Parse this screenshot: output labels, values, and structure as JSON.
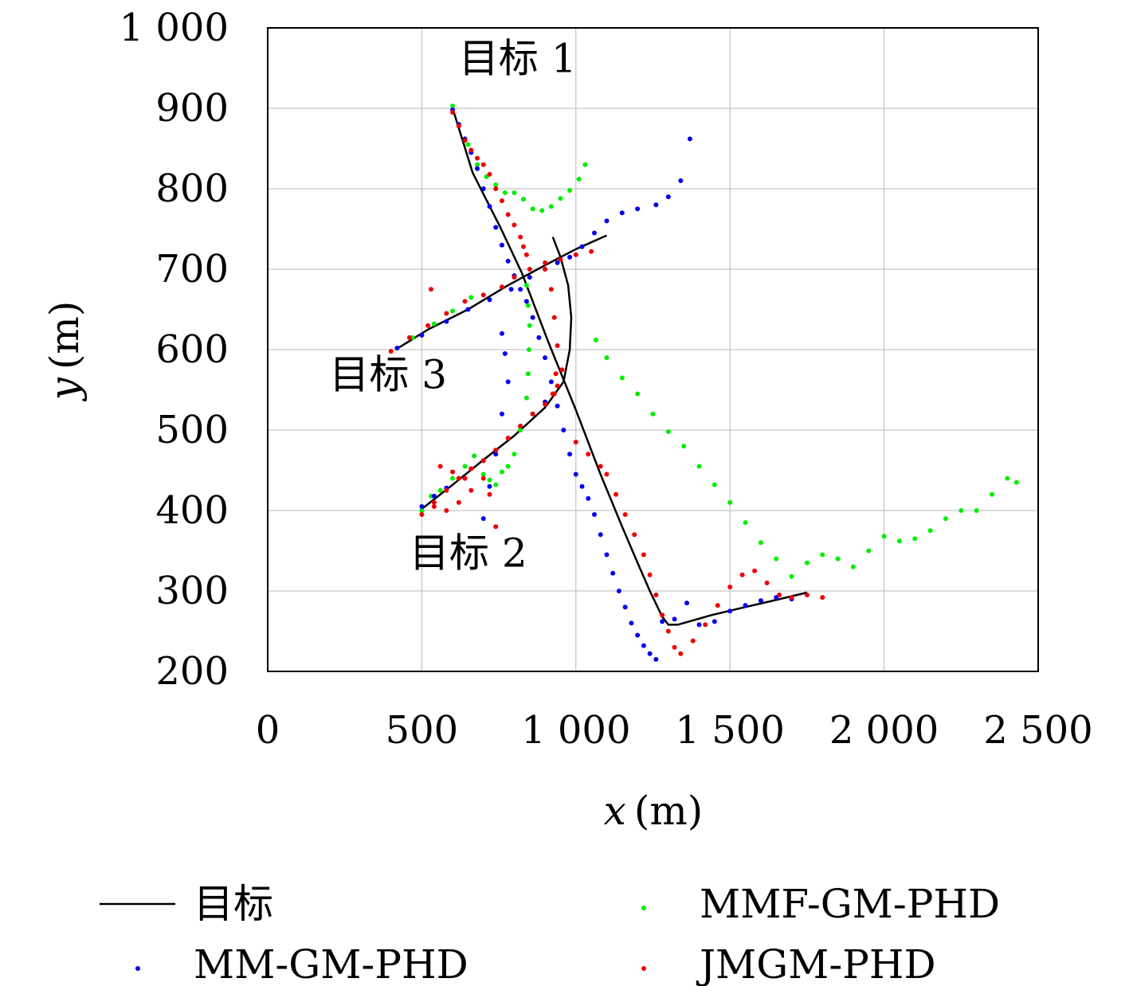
{
  "chart_data": {
    "type": "scatter",
    "xlabel_var": "x",
    "xlabel_unit": "(m)",
    "ylabel_var": "y",
    "ylabel_unit": "(m)",
    "xlim": [
      0,
      2500
    ],
    "ylim": [
      200,
      1000
    ],
    "x_ticks": [
      {
        "value": 0,
        "label": "0"
      },
      {
        "value": 500,
        "label": "500"
      },
      {
        "value": 1000,
        "label": "1 000"
      },
      {
        "value": 1500,
        "label": "1 500"
      },
      {
        "value": 2000,
        "label": "2 000"
      },
      {
        "value": 2500,
        "label": "2 500"
      }
    ],
    "y_ticks": [
      {
        "value": 200,
        "label": "200"
      },
      {
        "value": 300,
        "label": "300"
      },
      {
        "value": 400,
        "label": "400"
      },
      {
        "value": 500,
        "label": "500"
      },
      {
        "value": 600,
        "label": "600"
      },
      {
        "value": 700,
        "label": "700"
      },
      {
        "value": 800,
        "label": "800"
      },
      {
        "value": 900,
        "label": "900"
      },
      {
        "value": 1000,
        "label": "1 000"
      }
    ],
    "grid": true,
    "legend_position": "bottom",
    "annotations": [
      {
        "text": "目标 1",
        "x": 620,
        "y": 945
      },
      {
        "text": "目标 3",
        "x": 200,
        "y": 552
      },
      {
        "text": "目标 2",
        "x": 460,
        "y": 330
      }
    ],
    "series": [
      {
        "name": "目标",
        "style": "line",
        "color": "#000000",
        "tracks": [
          {
            "x": [
              600,
              665,
              755,
              825,
              910,
              1000,
              1080,
              1150,
              1200,
              1240,
              1280,
              1300,
              1330,
              1440,
              1550,
              1640,
              1750
            ],
            "y": [
              900,
              820,
              752,
              695,
              610,
              525,
              445,
              380,
              335,
              300,
              268,
              258,
              258,
              270,
              280,
              288,
              298
            ]
          },
          {
            "x": [
              415,
              520,
              650,
              780,
              900,
              1000,
              1100
            ],
            "y": [
              600,
              625,
              650,
              680,
              705,
              725,
              742
            ]
          },
          {
            "x": [
              500,
              600,
              700,
              800,
              900,
              960,
              980,
              985,
              975,
              950,
              925
            ],
            "y": [
              402,
              432,
              463,
              493,
              528,
              560,
              600,
              640,
              680,
              715,
              740
            ]
          }
        ]
      },
      {
        "name": "MMF-GM-PHD",
        "style": "dots",
        "color": "#00ee00",
        "tracks": [
          {
            "x": [
              600,
              620,
              650,
              680,
              710,
              740,
              770,
              800,
              830,
              860,
              890,
              920,
              950,
              980,
              1010,
              1030
            ],
            "y": [
              903,
              880,
              855,
              830,
              815,
              805,
              795,
              795,
              787,
              775,
              773,
              778,
              788,
              798,
              812,
              830
            ]
          },
          {
            "x": [
              1065,
              1100,
              1150,
              1200,
              1250,
              1300,
              1350,
              1400,
              1450,
              1500,
              1550,
              1600,
              1650,
              1700,
              1750,
              1800,
              1850,
              1900,
              1950,
              2000,
              2050,
              2100,
              2150,
              2200,
              2250,
              2300,
              2350,
              2400,
              2430
            ],
            "y": [
              612,
              590,
              565,
              545,
              520,
              498,
              480,
              455,
              432,
              410,
              385,
              360,
              340,
              318,
              335,
              345,
              340,
              330,
              350,
              368,
              362,
              365,
              375,
              390,
              400,
              400,
              420,
              440,
              435
            ]
          },
          {
            "x": [
              500,
              530,
              560,
              600,
              640,
              670,
              700,
              720,
              740,
              760,
              780,
              800,
              820,
              840,
              845,
              848,
              850,
              845,
              840
            ],
            "y": [
              400,
              418,
              425,
              440,
              455,
              468,
              445,
              438,
              432,
              448,
              455,
              470,
              500,
              540,
              570,
              600,
              630,
              655,
              680
            ]
          },
          {
            "x": [
              470,
              540,
              600,
              660
            ],
            "y": [
              615,
              632,
              648,
              665
            ]
          }
        ]
      },
      {
        "name": "MM-GM-PHD",
        "style": "dots",
        "color": "#0000ee",
        "tracks": [
          {
            "x": [
              600,
              620,
              640,
              660,
              680,
              700,
              720,
              740,
              760,
              780,
              800,
              820,
              840,
              860,
              880,
              900,
              920,
              940,
              960,
              980,
              1000,
              1020,
              1040,
              1060,
              1080,
              1100,
              1120,
              1140,
              1160,
              1180,
              1200,
              1220,
              1240,
              1260
            ],
            "y": [
              898,
              880,
              862,
              845,
              825,
              800,
              778,
              752,
              730,
              710,
              692,
              675,
              660,
              640,
              615,
              590,
              560,
              530,
              500,
              470,
              445,
              430,
              415,
              395,
              370,
              345,
              322,
              300,
              280,
              260,
              245,
              232,
              222,
              215
            ]
          },
          {
            "x": [
              1280,
              1320,
              1360,
              1400,
              1450,
              1500,
              1550,
              1600,
              1650,
              1700
            ],
            "y": [
              262,
              265,
              285,
              258,
              262,
              275,
              282,
              288,
              292,
              290
            ]
          },
          {
            "x": [
              420,
              500,
              580,
              650,
              720,
              790,
              850,
              900,
              940,
              980,
              1020,
              1060,
              1100,
              1150,
              1200,
              1260,
              1300,
              1340,
              1370
            ],
            "y": [
              602,
              618,
              635,
              650,
              662,
              675,
              690,
              700,
              708,
              715,
              728,
              745,
              760,
              770,
              775,
              780,
              790,
              810,
              862
            ]
          },
          {
            "x": [
              500,
              540,
              580,
              620,
              660,
              700,
              740,
              780,
              820,
              860,
              900
            ],
            "y": [
              405,
              418,
              428,
              440,
              452,
              462,
              475,
              490,
              505,
              520,
              535
            ]
          },
          {
            "x": [
              760,
              770,
              780,
              760,
              740,
              720,
              700
            ],
            "y": [
              620,
              595,
              560,
              520,
              470,
              430,
              390
            ]
          }
        ]
      },
      {
        "name": "JMGM-PHD",
        "style": "dots",
        "color": "#ee0000",
        "tracks": [
          {
            "x": [
              600,
              620,
              640,
              660,
              680,
              700,
              720,
              740,
              760,
              780,
              800,
              820,
              830,
              840
            ],
            "y": [
              895,
              878,
              860,
              848,
              838,
              830,
              818,
              800,
              785,
              768,
              755,
              740,
              728,
              718
            ]
          },
          {
            "x": [
              400,
              460,
              520,
              580,
              640,
              700,
              760,
              800,
              850,
              900,
              950,
              1000,
              1050
            ],
            "y": [
              598,
              615,
              630,
              645,
              660,
              668,
              678,
              690,
              700,
              708,
              712,
              718,
              722
            ]
          },
          {
            "x": [
              900,
              920,
              930,
              940,
              935,
              925,
              940,
              955
            ],
            "y": [
              700,
              675,
              640,
              605,
              570,
              545,
              555,
              575
            ]
          },
          {
            "x": [
              500,
              540,
              580,
              620,
              660,
              700,
              740,
              780,
              820,
              860,
              900,
              930
            ],
            "y": [
              395,
              410,
              425,
              440,
              452,
              462,
              475,
              490,
              505,
              520,
              532,
              545
            ]
          },
          {
            "x": [
              540,
              580,
              620,
              660,
              700,
              720,
              740
            ],
            "y": [
              405,
              400,
              410,
              425,
              440,
              420,
              380
            ]
          },
          {
            "x": [
              1000,
              1040,
              1080,
              1100,
              1130,
              1160,
              1190,
              1220,
              1240,
              1260,
              1280,
              1300,
              1320,
              1340,
              1380,
              1420,
              1460,
              1500,
              1540,
              1580,
              1620,
              1660,
              1700,
              1750,
              1800
            ],
            "y": [
              485,
              470,
              455,
              445,
              420,
              395,
              370,
              345,
              320,
              295,
              270,
              250,
              230,
              222,
              238,
              258,
              282,
              305,
              320,
              325,
              310,
              295,
              292,
              295,
              292
            ]
          },
          {
            "x": [
              530,
              560,
              600,
              640
            ],
            "y": [
              675,
              455,
              448,
              440
            ]
          }
        ]
      }
    ]
  }
}
